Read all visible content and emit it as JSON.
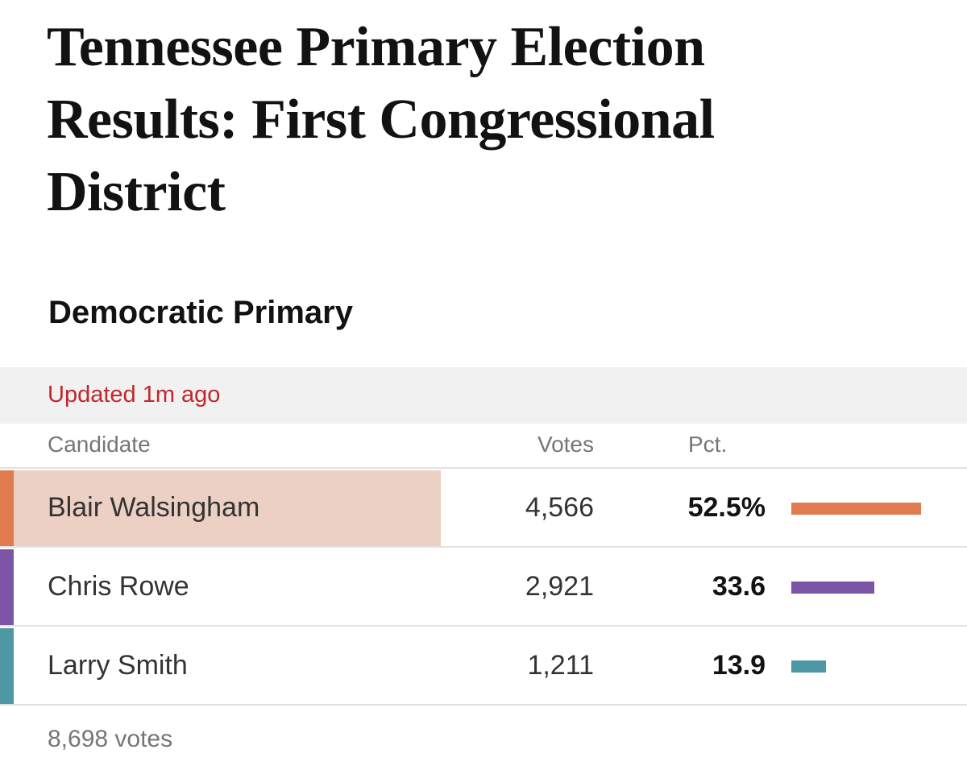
{
  "page_title": "Tennessee Primary Election Results: First Congressional District",
  "section_title": "Democratic Primary",
  "updated_text": "Updated 1m ago",
  "columns": {
    "candidate": "Candidate",
    "votes": "Votes",
    "pct": "Pct."
  },
  "candidates": [
    {
      "name": "Blair Walsingham",
      "votes": "4,566",
      "pct_label": "52.5%",
      "pct": 52.5,
      "color": "#e07a4f",
      "winner": true,
      "highlight": "#edd0c4"
    },
    {
      "name": "Chris Rowe",
      "votes": "2,921",
      "pct_label": "33.6",
      "pct": 33.6,
      "color": "#7d55a7",
      "winner": false
    },
    {
      "name": "Larry Smith",
      "votes": "1,211",
      "pct_label": "13.9",
      "pct": 13.9,
      "color": "#4e97a4",
      "winner": false
    }
  ],
  "total_votes": "8,698 votes",
  "colors": {
    "updated": "#c1272d",
    "divider": "#e2e2e2",
    "updated_bar_bg": "#f1f1f1"
  }
}
